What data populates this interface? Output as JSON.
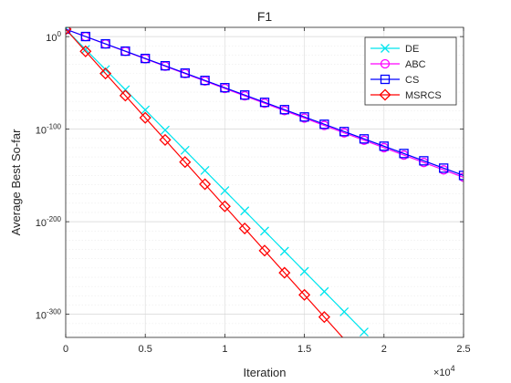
{
  "chart_data": {
    "type": "line",
    "title": "F1",
    "xlabel": "Iteration",
    "ylabel": "Average Best So-far",
    "x_exponent_label": "×10",
    "x_exponent_power": "4",
    "y_scale": "log",
    "xlim": [
      0,
      25000
    ],
    "ylim_log10": [
      -325,
      10
    ],
    "x_ticks": [
      0,
      5000,
      10000,
      15000,
      20000,
      25000
    ],
    "x_tick_labels": [
      "0",
      "0.5",
      "1",
      "1.5",
      "2",
      "2.5"
    ],
    "y_ticks_log10": [
      0,
      -100,
      -200,
      -300
    ],
    "y_tick_labels": [
      {
        "base": "10",
        "exp": "0"
      },
      {
        "base": "10",
        "exp": "-100"
      },
      {
        "base": "10",
        "exp": "-200"
      },
      {
        "base": "10",
        "exp": "-300"
      }
    ],
    "grid": true,
    "legend_position": "top-right",
    "series": [
      {
        "name": "DE",
        "color": "#00e5ee",
        "marker": "x",
        "points_log10": [
          [
            0,
            8
          ],
          [
            18800,
            -320
          ]
        ]
      },
      {
        "name": "ABC",
        "color": "#ff00ff",
        "marker": "circle",
        "points_log10": [
          [
            0,
            8
          ],
          [
            25000,
            -152
          ]
        ]
      },
      {
        "name": "CS",
        "color": "#0000ff",
        "marker": "square",
        "points_log10": [
          [
            0,
            8
          ],
          [
            25000,
            -150
          ]
        ]
      },
      {
        "name": "MSRCS",
        "color": "#ff0000",
        "marker": "diamond",
        "points_log10": [
          [
            0,
            8
          ],
          [
            17400,
            -325
          ]
        ]
      }
    ]
  }
}
